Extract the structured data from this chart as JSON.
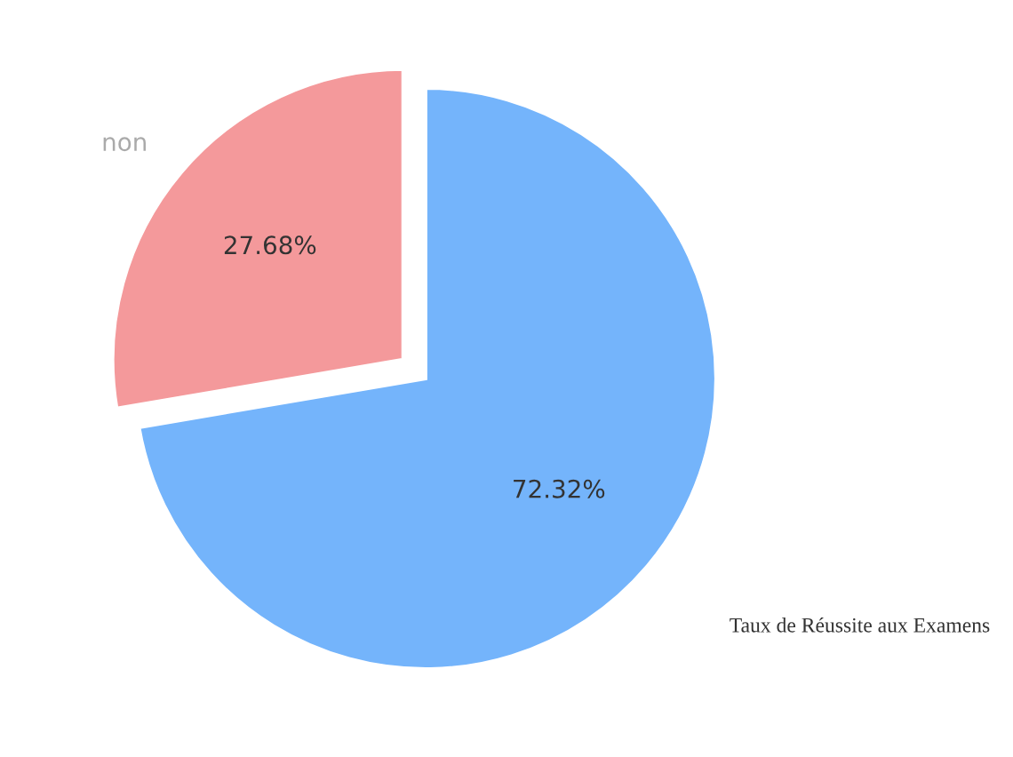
{
  "chart_data": {
    "type": "pie",
    "title": "Taux de Réussite aux Examens",
    "categories": [
      "non",
      null
    ],
    "values": [
      27.68,
      72.32
    ],
    "value_labels": [
      "27.68%",
      "72.32%"
    ],
    "colors": [
      "#f4999b",
      "#74b4fb"
    ],
    "legend": false
  }
}
